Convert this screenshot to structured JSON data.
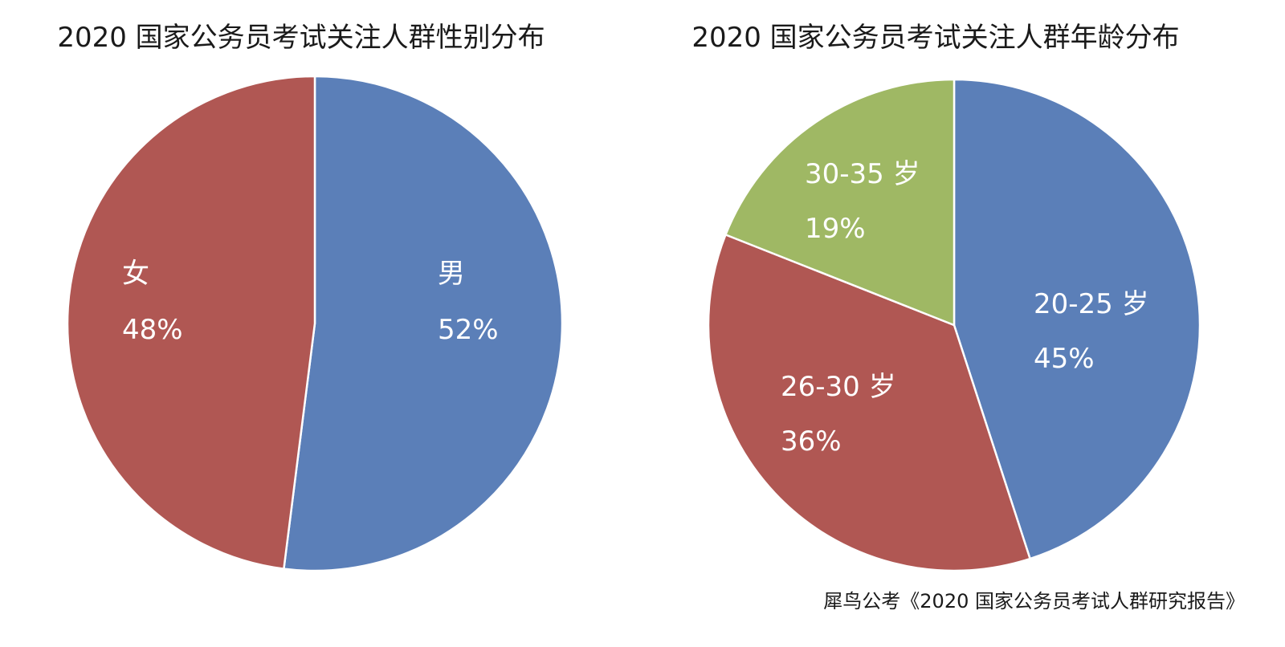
{
  "chart_data": [
    {
      "type": "pie",
      "title": "2020 国家公务员考试关注人群性别分布",
      "start_angle_deg": 0,
      "slices": [
        {
          "label": "男",
          "value": 52,
          "value_label": "52%",
          "color": "#5b7fb8"
        },
        {
          "label": "女",
          "value": 48,
          "value_label": "48%",
          "color": "#b05753"
        }
      ]
    },
    {
      "type": "pie",
      "title": "2020 国家公务员考试关注人群年龄分布",
      "start_angle_deg": 0,
      "slices": [
        {
          "label": "20-25 岁",
          "value": 45,
          "value_label": "45%",
          "color": "#5b7fb8"
        },
        {
          "label": "26-30 岁",
          "value": 36,
          "value_label": "36%",
          "color": "#b05753"
        },
        {
          "label": "30-35 岁",
          "value": 19,
          "value_label": "19%",
          "color": "#9fb864"
        }
      ]
    }
  ],
  "source": "犀鸟公考《2020 国家公务员考试人群研究报告》"
}
